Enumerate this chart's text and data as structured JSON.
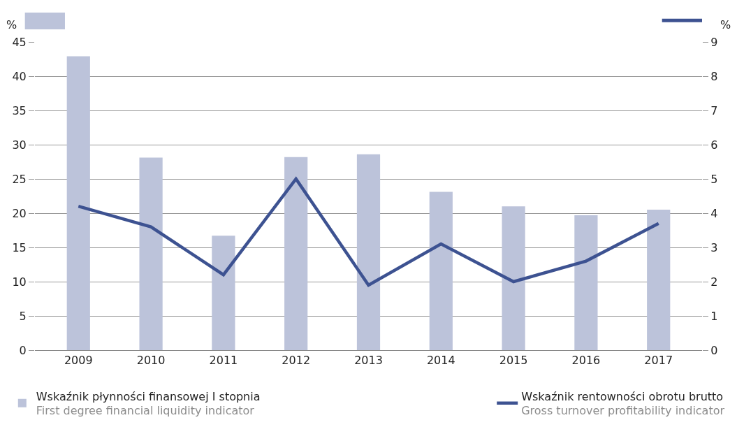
{
  "chart_data": {
    "type": "bar",
    "categories": [
      "2009",
      "2010",
      "2011",
      "2012",
      "2013",
      "2014",
      "2015",
      "2016",
      "2017"
    ],
    "ylabel": "%",
    "y2label": "%",
    "ylim": [
      0,
      45
    ],
    "yticks": [
      0,
      5,
      10,
      15,
      20,
      25,
      30,
      35,
      40,
      45
    ],
    "y2lim": [
      0,
      9
    ],
    "y2ticks": [
      0,
      1,
      2,
      3,
      4,
      5,
      6,
      7,
      8,
      9
    ],
    "grid": "y",
    "legend": "bottom",
    "series": [
      {
        "name": "Wskaźnik płynności finansowej I stopnia\nFirst degree financial liquidity indicator",
        "color": "#bcc3da",
        "values": [
          42.9,
          28.1,
          16.7,
          28.2,
          28.6,
          23.1,
          21.0,
          19.7,
          20.5
        ]
      },
      {
        "name": "Wskaźnik rentowności obrotu brutto\nGross turnover profitability indicator",
        "color": "#3d5291",
        "type": "line",
        "axis": "y2",
        "values": [
          4.2,
          3.6,
          2.2,
          5.0,
          1.9,
          3.1,
          2.0,
          2.6,
          3.7
        ]
      }
    ]
  }
}
